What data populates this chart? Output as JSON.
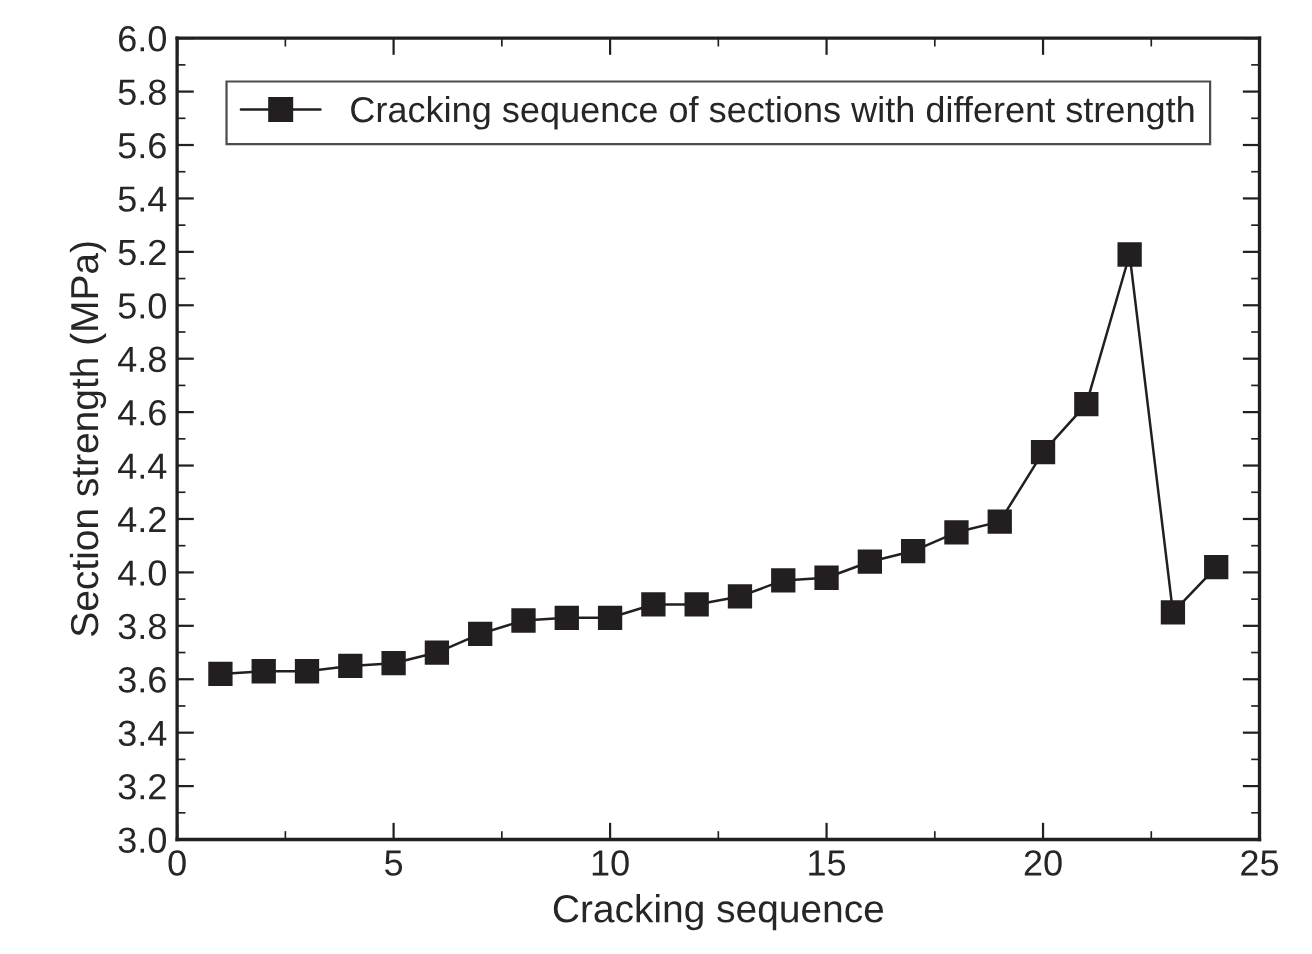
{
  "chart_data": {
    "type": "line",
    "xlabel": "Cracking sequence",
    "ylabel": "Section strength (MPa)",
    "x": [
      1,
      2,
      3,
      4,
      5,
      6,
      7,
      8,
      9,
      10,
      11,
      12,
      13,
      14,
      15,
      16,
      17,
      18,
      19,
      20,
      21,
      22,
      23,
      24
    ],
    "series": [
      {
        "name": "Cracking sequence of sections with different strength",
        "color": "#231f20",
        "values": [
          3.62,
          3.63,
          3.63,
          3.65,
          3.66,
          3.7,
          3.77,
          3.82,
          3.83,
          3.83,
          3.88,
          3.88,
          3.91,
          3.97,
          3.98,
          4.04,
          4.08,
          4.15,
          4.19,
          4.45,
          4.63,
          5.19,
          3.85,
          4.02
        ]
      }
    ],
    "xlim": [
      0,
      25
    ],
    "xticks": [
      0,
      5,
      10,
      15,
      20,
      25
    ],
    "ylim": [
      3.0,
      6.0
    ],
    "yticks": [
      {
        "value": 3.0,
        "label": "3.0"
      },
      {
        "value": 3.2,
        "label": "3.2"
      },
      {
        "value": 3.4,
        "label": "3.4"
      },
      {
        "value": 3.6,
        "label": "3.6"
      },
      {
        "value": 3.8,
        "label": "3.8"
      },
      {
        "value": 4.0,
        "label": "4.0"
      },
      {
        "value": 4.2,
        "label": "4.2"
      },
      {
        "value": 4.4,
        "label": "4.4"
      },
      {
        "value": 4.6,
        "label": "4.6"
      },
      {
        "value": 4.8,
        "label": "4.8"
      },
      {
        "value": 5.0,
        "label": "5.0"
      },
      {
        "value": 5.2,
        "label": "5.2"
      },
      {
        "value": 5.4,
        "label": "5.4"
      },
      {
        "value": 5.6,
        "label": "5.6"
      },
      {
        "value": 5.8,
        "label": "5.8"
      },
      {
        "value": 6.0,
        "label": "6.0"
      }
    ],
    "grid": false,
    "legend": "top",
    "marker": "square",
    "line_style": "solid"
  }
}
